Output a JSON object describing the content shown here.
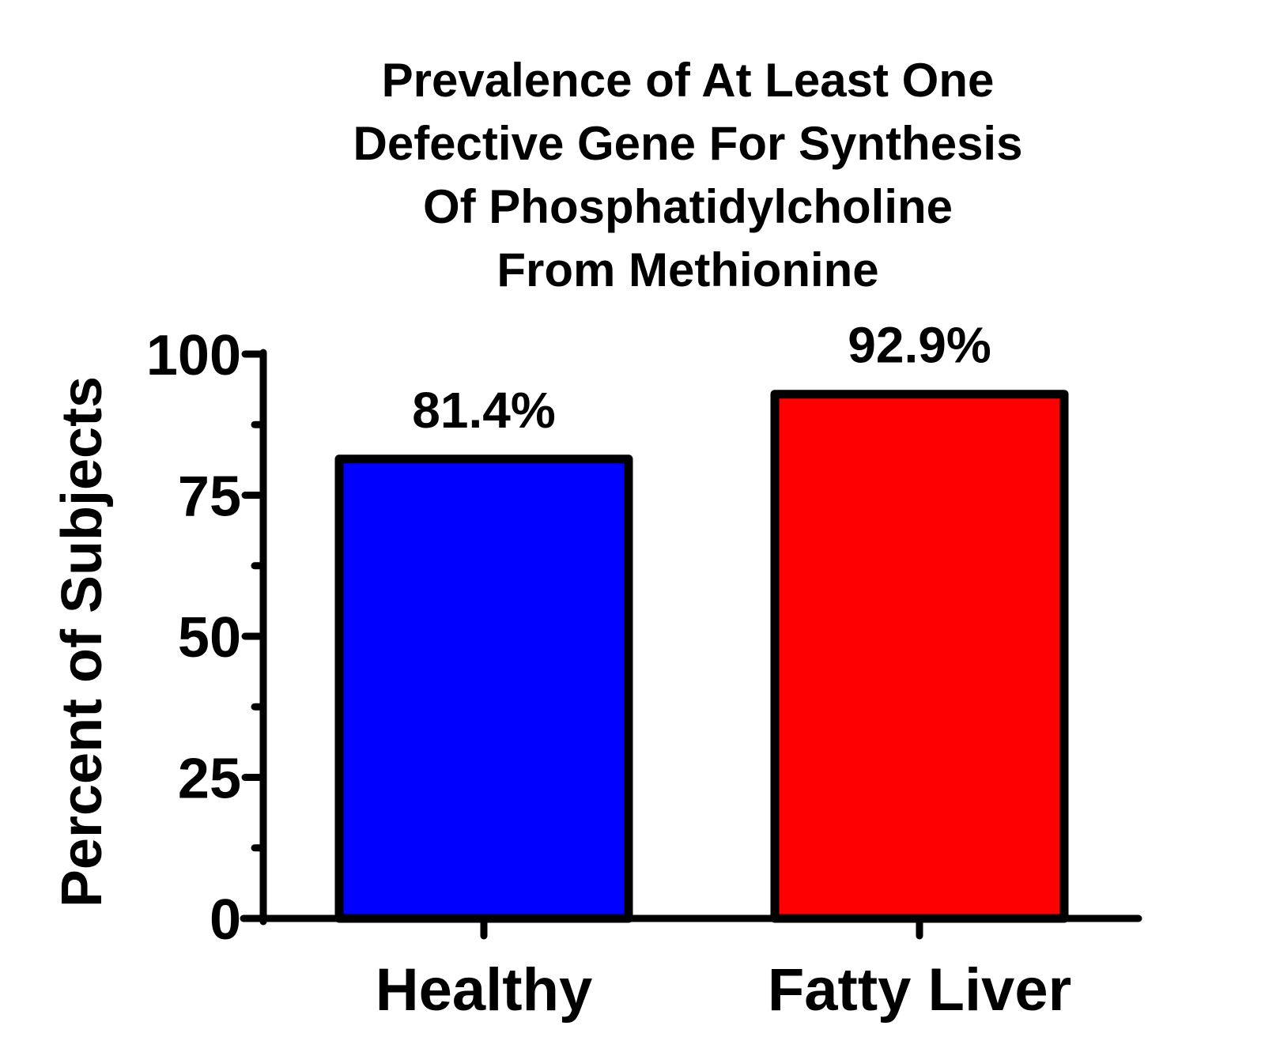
{
  "chart_data": {
    "type": "bar",
    "title_lines": [
      "Prevalence of At Least One",
      "Defective Gene For Synthesis",
      "Of Phosphatidylcholine",
      "From Methionine"
    ],
    "xlabel": "",
    "ylabel": "Percent of Subjects",
    "categories": [
      "Healthy",
      "Fatty Liver"
    ],
    "values": [
      81.4,
      92.9
    ],
    "data_labels": [
      "81.4%",
      "92.9%"
    ],
    "colors": [
      "#0000ff",
      "#ff0000"
    ],
    "ylim": [
      0,
      100
    ],
    "yticks": [
      0,
      25,
      50,
      75,
      100
    ],
    "ytick_labels": [
      "0",
      "25",
      "50",
      "75",
      "100"
    ],
    "minor_yticks": [
      12.5,
      37.5,
      62.5,
      87.5
    ],
    "grid": false,
    "legend": "none"
  }
}
